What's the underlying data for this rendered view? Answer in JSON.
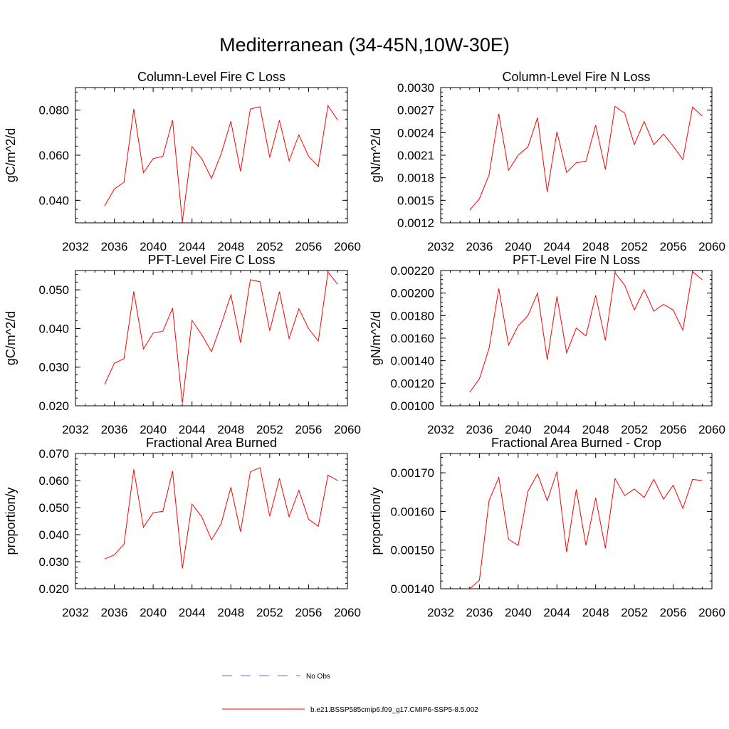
{
  "title": "Mediterranean (34-45N,10W-30E)",
  "chart_data": [
    {
      "type": "line",
      "title": "Column-Level Fire C Loss",
      "ylabel": "gC/m^2/d",
      "xlim": [
        2032,
        2060
      ],
      "xticks": [
        "2032",
        "2036",
        "2040",
        "2044",
        "2048",
        "2052",
        "2056",
        "2060"
      ],
      "ylim": [
        0.03,
        0.09
      ],
      "yticks": [
        "0.040",
        "0.060",
        "0.080"
      ],
      "x": [
        2035,
        2036,
        2037,
        2038,
        2039,
        2040,
        2041,
        2042,
        2043,
        2044,
        2045,
        2046,
        2047,
        2048,
        2049,
        2050,
        2051,
        2052,
        2053,
        2054,
        2055,
        2056,
        2057,
        2058,
        2059
      ],
      "series": [
        {
          "values": [
            0.0375,
            0.045,
            0.048,
            0.0805,
            0.0522,
            0.0585,
            0.0595,
            0.0755,
            0.0305,
            0.0638,
            0.0585,
            0.0497,
            0.0605,
            0.075,
            0.0528,
            0.0805,
            0.0815,
            0.059,
            0.0755,
            0.0575,
            0.069,
            0.0595,
            0.055,
            0.082,
            0.0755
          ]
        }
      ]
    },
    {
      "type": "line",
      "title": "Column-Level Fire N Loss",
      "ylabel": "gN/m^2/d",
      "xlim": [
        2032,
        2060
      ],
      "xticks": [
        "2032",
        "2036",
        "2040",
        "2044",
        "2048",
        "2052",
        "2056",
        "2060"
      ],
      "ylim": [
        0.0012,
        0.003
      ],
      "yticks": [
        "0.0012",
        "0.0015",
        "0.0018",
        "0.0021",
        "0.0024",
        "0.0027",
        "0.0030"
      ],
      "x": [
        2035,
        2036,
        2037,
        2038,
        2039,
        2040,
        2041,
        2042,
        2043,
        2044,
        2045,
        2046,
        2047,
        2048,
        2049,
        2050,
        2051,
        2052,
        2053,
        2054,
        2055,
        2056,
        2057,
        2058,
        2059
      ],
      "series": [
        {
          "values": [
            0.00137,
            0.00152,
            0.00184,
            0.00265,
            0.0019,
            0.0021,
            0.00221,
            0.0026,
            0.00161,
            0.00241,
            0.00187,
            0.002,
            0.00202,
            0.0025,
            0.00191,
            0.00275,
            0.00266,
            0.00224,
            0.00255,
            0.00224,
            0.00238,
            0.00222,
            0.00204,
            0.00274,
            0.00262
          ]
        }
      ]
    },
    {
      "type": "line",
      "title": "PFT-Level Fire C Loss",
      "ylabel": "gC/m^2/d",
      "xlim": [
        2032,
        2060
      ],
      "xticks": [
        "2032",
        "2036",
        "2040",
        "2044",
        "2048",
        "2052",
        "2056",
        "2060"
      ],
      "ylim": [
        0.02,
        0.055
      ],
      "yticks": [
        "0.020",
        "0.030",
        "0.040",
        "0.050"
      ],
      "x": [
        2035,
        2036,
        2037,
        2038,
        2039,
        2040,
        2041,
        2042,
        2043,
        2044,
        2045,
        2046,
        2047,
        2048,
        2049,
        2050,
        2051,
        2052,
        2053,
        2054,
        2055,
        2056,
        2057,
        2058,
        2059
      ],
      "series": [
        {
          "values": [
            0.0255,
            0.031,
            0.0322,
            0.0496,
            0.0347,
            0.0388,
            0.0393,
            0.0453,
            0.0207,
            0.0421,
            0.0384,
            0.034,
            0.041,
            0.0487,
            0.0363,
            0.0526,
            0.0521,
            0.0394,
            0.0495,
            0.0374,
            0.0451,
            0.04,
            0.0367,
            0.0546,
            0.0514
          ]
        }
      ]
    },
    {
      "type": "line",
      "title": "PFT-Level Fire N Loss",
      "ylabel": "gN/m^2/d",
      "xlim": [
        2032,
        2060
      ],
      "xticks": [
        "2032",
        "2036",
        "2040",
        "2044",
        "2048",
        "2052",
        "2056",
        "2060"
      ],
      "ylim": [
        0.001,
        0.0022
      ],
      "yticks": [
        "0.00100",
        "0.00120",
        "0.00140",
        "0.00160",
        "0.00180",
        "0.00200",
        "0.00220"
      ],
      "x": [
        2035,
        2036,
        2037,
        2038,
        2039,
        2040,
        2041,
        2042,
        2043,
        2044,
        2045,
        2046,
        2047,
        2048,
        2049,
        2050,
        2051,
        2052,
        2053,
        2054,
        2055,
        2056,
        2057,
        2058,
        2059
      ],
      "series": [
        {
          "values": [
            0.00112,
            0.00124,
            0.00151,
            0.00204,
            0.00154,
            0.00171,
            0.0018,
            0.002,
            0.00141,
            0.00197,
            0.00147,
            0.00169,
            0.00162,
            0.00198,
            0.00158,
            0.00218,
            0.00207,
            0.00185,
            0.00203,
            0.00184,
            0.0019,
            0.00185,
            0.00167,
            0.00219,
            0.00212
          ]
        }
      ]
    },
    {
      "type": "line",
      "title": "Fractional Area Burned",
      "ylabel": "proportion/y",
      "xlim": [
        2032,
        2060
      ],
      "xticks": [
        "2032",
        "2036",
        "2040",
        "2044",
        "2048",
        "2052",
        "2056",
        "2060"
      ],
      "ylim": [
        0.02,
        0.07
      ],
      "yticks": [
        "0.020",
        "0.030",
        "0.040",
        "0.050",
        "0.060",
        "0.070"
      ],
      "x": [
        2035,
        2036,
        2037,
        2038,
        2039,
        2040,
        2041,
        2042,
        2043,
        2044,
        2045,
        2046,
        2047,
        2048,
        2049,
        2050,
        2051,
        2052,
        2053,
        2054,
        2055,
        2056,
        2057,
        2058,
        2059
      ],
      "series": [
        {
          "values": [
            0.031,
            0.0325,
            0.0365,
            0.0641,
            0.0427,
            0.0481,
            0.0486,
            0.0635,
            0.0275,
            0.0513,
            0.0466,
            0.0381,
            0.044,
            0.0575,
            0.041,
            0.0632,
            0.0648,
            0.0468,
            0.0608,
            0.0466,
            0.0564,
            0.0457,
            0.0431,
            0.062,
            0.06
          ]
        }
      ]
    },
    {
      "type": "line",
      "title": "Fractional Area Burned - Crop",
      "ylabel": "proportion/y",
      "xlim": [
        2032,
        2060
      ],
      "xticks": [
        "2032",
        "2036",
        "2040",
        "2044",
        "2048",
        "2052",
        "2056",
        "2060"
      ],
      "ylim": [
        0.0014,
        0.00175
      ],
      "yticks": [
        "0.00140",
        "0.00150",
        "0.00160",
        "0.00170"
      ],
      "x": [
        2035,
        2036,
        2037,
        2038,
        2039,
        2040,
        2041,
        2042,
        2043,
        2044,
        2045,
        2046,
        2047,
        2048,
        2049,
        2050,
        2051,
        2052,
        2053,
        2054,
        2055,
        2056,
        2057,
        2058,
        2059
      ],
      "series": [
        {
          "values": [
            0.0014,
            0.001422,
            0.001628,
            0.001688,
            0.001528,
            0.001512,
            0.001652,
            0.001697,
            0.001628,
            0.001703,
            0.001495,
            0.001657,
            0.001512,
            0.001635,
            0.001505,
            0.001685,
            0.001641,
            0.001658,
            0.001636,
            0.001683,
            0.001632,
            0.001668,
            0.001608,
            0.001683,
            0.00168
          ]
        }
      ]
    }
  ],
  "legend": [
    {
      "label": "No Obs",
      "color": "#5a6fd6",
      "style": "dashed"
    },
    {
      "label": "b.e21.BSSP585cmip6.f09_g17.CMIP6-SSP5-8.5.002",
      "color": "#ff0000",
      "style": "solid"
    }
  ],
  "colors": {
    "series": "#ff0000",
    "axes": "#000000"
  }
}
